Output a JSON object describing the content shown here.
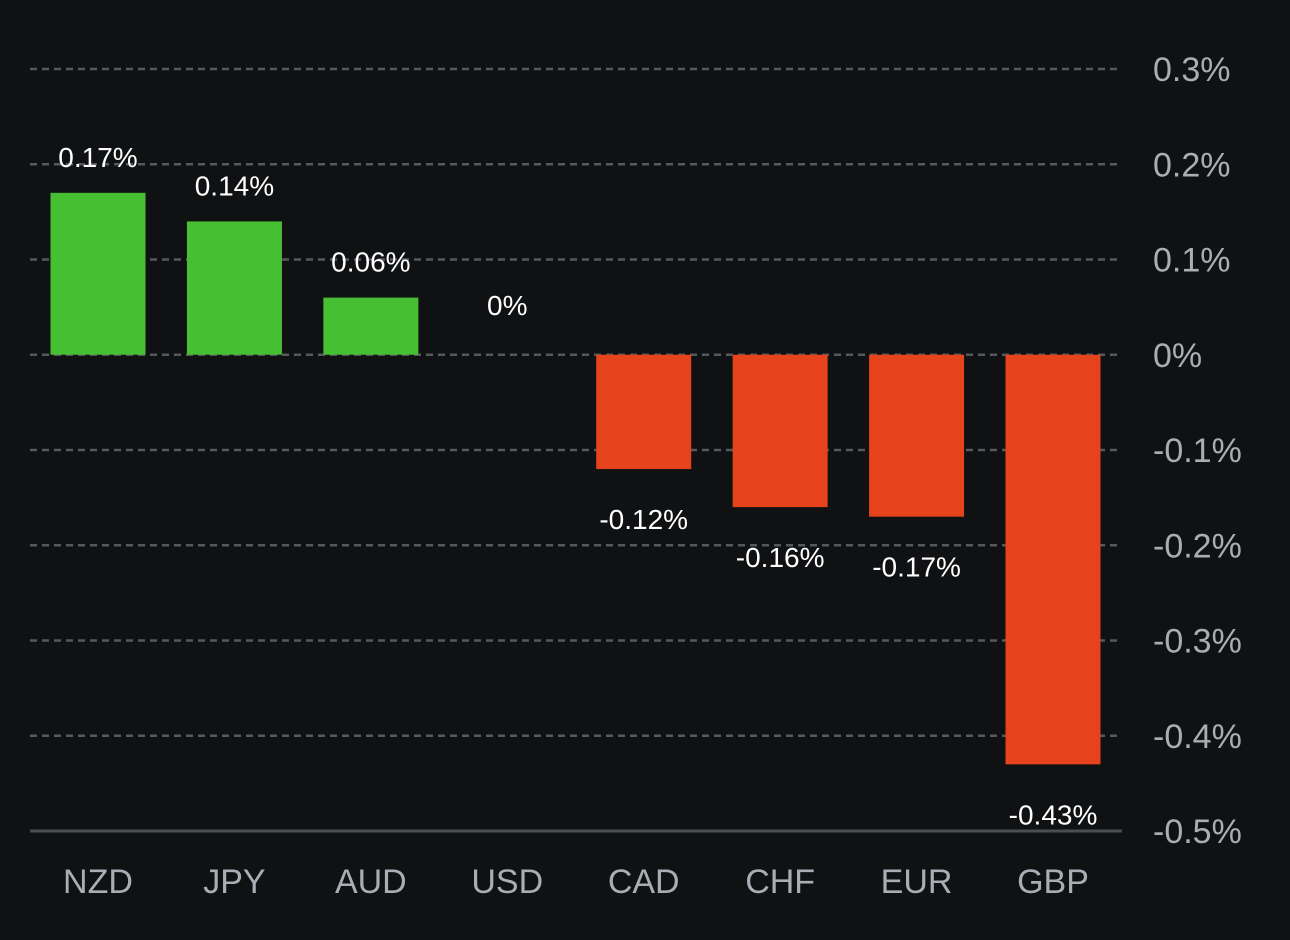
{
  "chart_data": {
    "type": "bar",
    "title": "",
    "xlabel": "",
    "ylabel": "",
    "categories": [
      "NZD",
      "JPY",
      "AUD",
      "USD",
      "CAD",
      "CHF",
      "EUR",
      "GBP"
    ],
    "values": [
      0.17,
      0.14,
      0.06,
      0,
      -0.12,
      -0.16,
      -0.17,
      -0.43
    ],
    "value_labels": [
      "0.17%",
      "0.14%",
      "0.06%",
      "0%",
      "-0.12%",
      "-0.16%",
      "-0.17%",
      "-0.43%"
    ],
    "ylim": [
      -0.5,
      0.3
    ],
    "y_ticks": [
      0.3,
      0.2,
      0.1,
      0,
      -0.1,
      -0.2,
      -0.3,
      -0.4,
      -0.5
    ],
    "y_tick_labels": [
      "0.3%",
      "0.2%",
      "0.1%",
      "0%",
      "-0.1%",
      "-0.2%",
      "-0.3%",
      "-0.4%",
      "-0.5%"
    ],
    "y_axis_position": "right",
    "grid": true,
    "legend": "none",
    "colors": {
      "positive": "#46bf33",
      "negative": "#e6421b",
      "background": "#101113",
      "grid": "#55585c",
      "tick_text": "#a9adb4",
      "label_text": "#ffffff"
    }
  }
}
